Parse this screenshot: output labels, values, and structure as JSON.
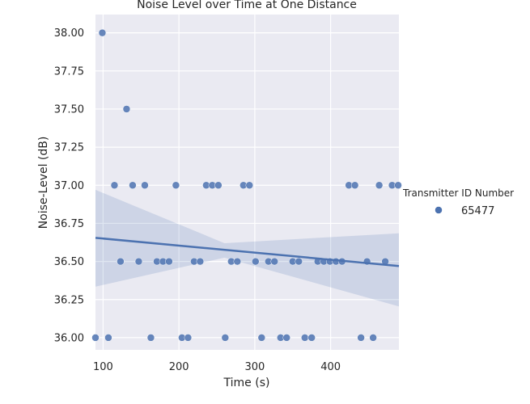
{
  "chart_data": {
    "type": "scatter",
    "title": "Noise Level over Time at One Distance",
    "xlabel": "Time (s)",
    "ylabel": "Noise-Level (dB)",
    "xlim": [
      90,
      490
    ],
    "ylim": [
      35.92,
      38.12
    ],
    "xticks": [
      100,
      200,
      300,
      400
    ],
    "yticks": [
      36.0,
      36.25,
      36.5,
      36.75,
      37.0,
      37.25,
      37.5,
      37.75,
      38.0
    ],
    "grid": true,
    "background": "#eaeaf2",
    "legend": {
      "title": "Transmitter ID Number",
      "placement": "right"
    },
    "series": [
      {
        "name": "65477",
        "color": "#4c72b0",
        "points": [
          [
            90,
            36.0
          ],
          [
            99,
            38.0
          ],
          [
            107,
            36.0
          ],
          [
            115,
            37.0
          ],
          [
            123,
            36.5
          ],
          [
            131,
            37.5
          ],
          [
            139,
            37.0
          ],
          [
            147,
            36.5
          ],
          [
            155,
            37.0
          ],
          [
            163,
            36.0
          ],
          [
            171,
            36.5
          ],
          [
            179,
            36.5
          ],
          [
            187,
            36.5
          ],
          [
            196,
            37.0
          ],
          [
            204,
            36.0
          ],
          [
            212,
            36.0
          ],
          [
            220,
            36.5
          ],
          [
            228,
            36.5
          ],
          [
            236,
            37.0
          ],
          [
            244,
            37.0
          ],
          [
            252,
            37.0
          ],
          [
            261,
            36.0
          ],
          [
            269,
            36.5
          ],
          [
            277,
            36.5
          ],
          [
            285,
            37.0
          ],
          [
            293,
            37.0
          ],
          [
            301,
            36.5
          ],
          [
            309,
            36.0
          ],
          [
            318,
            36.5
          ],
          [
            326,
            36.5
          ],
          [
            334,
            36.0
          ],
          [
            342,
            36.0
          ],
          [
            350,
            36.5
          ],
          [
            358,
            36.5
          ],
          [
            366,
            36.0
          ],
          [
            375,
            36.0
          ],
          [
            383,
            36.5
          ],
          [
            391,
            36.5
          ],
          [
            399,
            36.5
          ],
          [
            407,
            36.5
          ],
          [
            415,
            36.5
          ],
          [
            424,
            37.0
          ],
          [
            432,
            37.0
          ],
          [
            440,
            36.0
          ],
          [
            448,
            36.5
          ],
          [
            456,
            36.0
          ],
          [
            464,
            37.0
          ],
          [
            472,
            36.5
          ],
          [
            481,
            37.0
          ],
          [
            489,
            37.0
          ]
        ]
      }
    ],
    "regression": {
      "color": "#4c72b0",
      "line": [
        [
          90,
          36.655
        ],
        [
          490,
          36.47
        ]
      ],
      "ci_upper": [
        [
          90,
          36.97
        ],
        [
          260,
          36.62
        ],
        [
          490,
          36.685
        ]
      ],
      "ci_lower": [
        [
          90,
          36.335
        ],
        [
          260,
          36.525
        ],
        [
          490,
          36.205
        ]
      ]
    }
  }
}
